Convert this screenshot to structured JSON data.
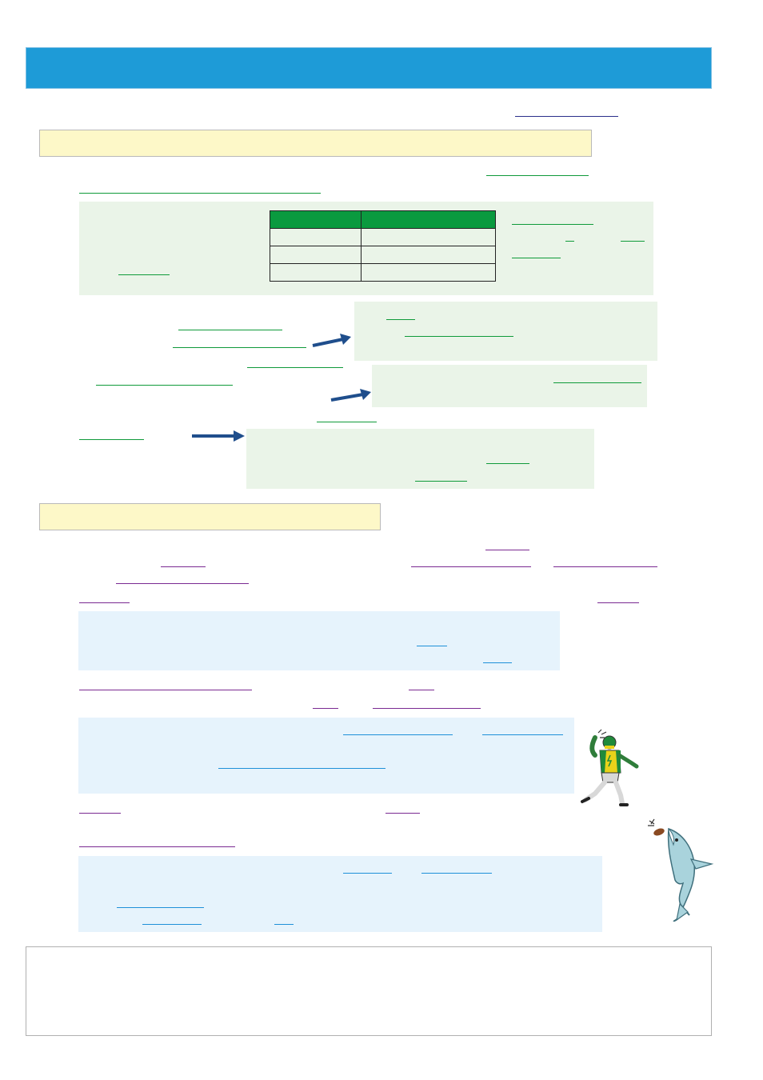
{
  "colors": {
    "header": "#1e9bd7",
    "section_head": "#fdf8c8",
    "green_box": "#eaf4e8",
    "blue_box": "#e6f3fc",
    "table_header": "#0a9a3f",
    "arrow": "#1f4e8c"
  },
  "icons": [
    "arrow-right-icon",
    "football-player-icon",
    "shark-icon"
  ]
}
